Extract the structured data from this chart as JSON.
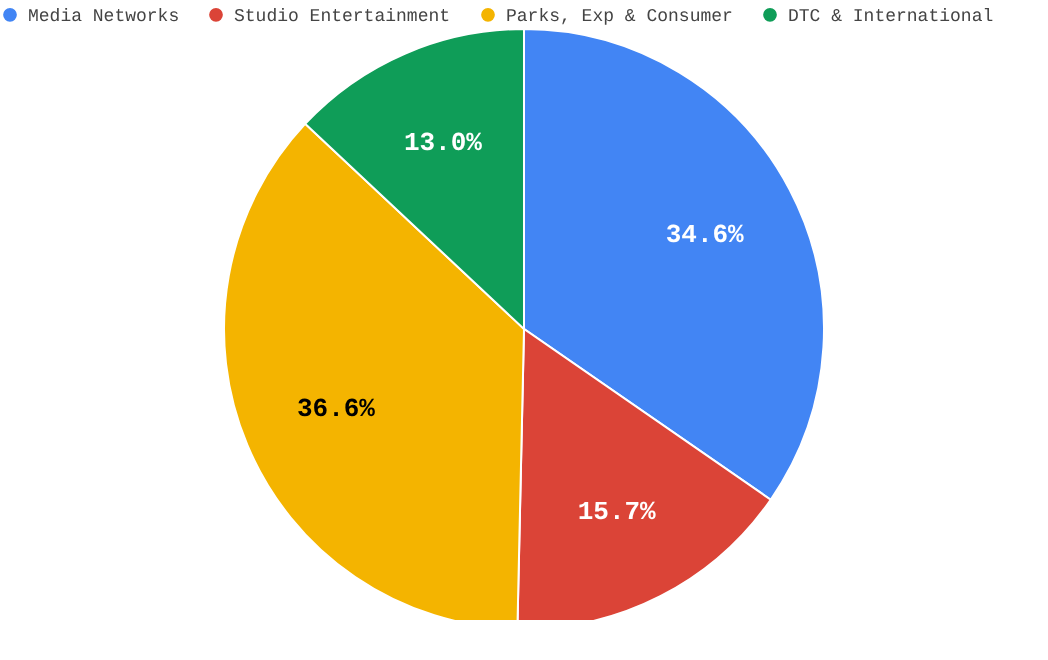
{
  "chart_data": {
    "type": "pie",
    "categories": [
      "Media Networks",
      "Studio Entertainment",
      "Parks, Exp & Consumer",
      "DTC & International"
    ],
    "values": [
      34.6,
      15.7,
      36.6,
      13.0
    ],
    "colors": [
      "#4285f4",
      "#db4437",
      "#f4b400",
      "#0f9d58"
    ],
    "value_labels": [
      "34.6%",
      "15.7%",
      "36.6%",
      "13.0%"
    ],
    "legend": "top"
  }
}
